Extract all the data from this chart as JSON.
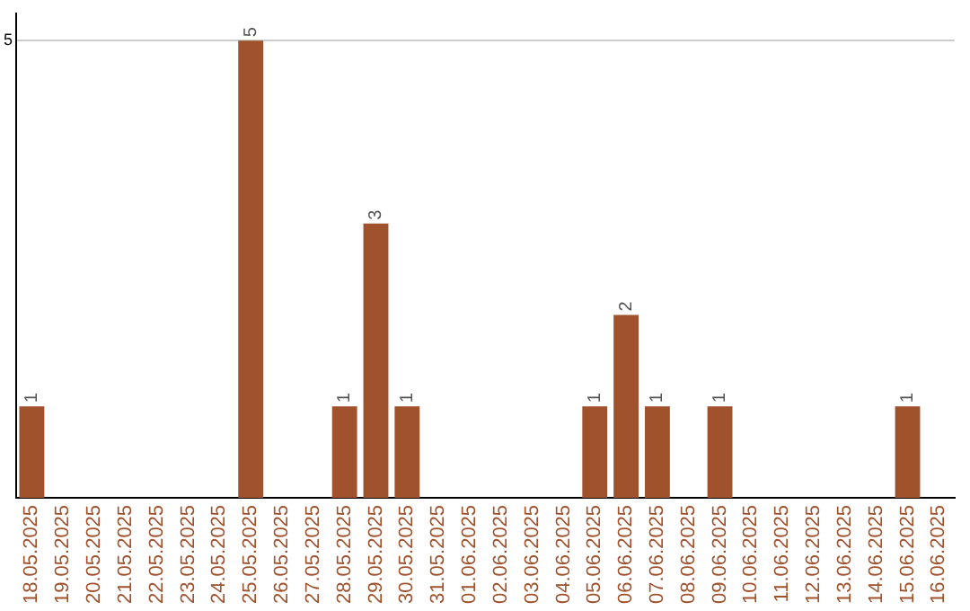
{
  "chart_data": {
    "type": "bar",
    "categories": [
      "18.05.2025",
      "19.05.2025",
      "20.05.2025",
      "21.05.2025",
      "22.05.2025",
      "23.05.2025",
      "24.05.2025",
      "25.05.2025",
      "26.05.2025",
      "27.05.2025",
      "28.05.2025",
      "29.05.2025",
      "30.05.2025",
      "31.05.2025",
      "01.06.2025",
      "02.06.2025",
      "03.06.2025",
      "04.06.2025",
      "05.06.2025",
      "06.06.2025",
      "07.06.2025",
      "08.06.2025",
      "09.06.2025",
      "10.06.2025",
      "11.06.2025",
      "12.06.2025",
      "13.06.2025",
      "14.06.2025",
      "15.06.2025",
      "16.06.2025"
    ],
    "values": [
      1,
      0,
      0,
      0,
      0,
      0,
      0,
      5,
      0,
      0,
      1,
      3,
      1,
      0,
      0,
      0,
      0,
      0,
      1,
      2,
      1,
      0,
      1,
      0,
      0,
      0,
      0,
      0,
      1,
      0
    ],
    "value_labels": [
      "1",
      null,
      null,
      null,
      null,
      null,
      null,
      "5",
      null,
      null,
      "1",
      "3",
      "1",
      null,
      null,
      null,
      null,
      null,
      "1",
      "2",
      "1",
      null,
      "1",
      null,
      null,
      null,
      null,
      null,
      "1",
      null
    ],
    "color": "#a0522d",
    "ylim": [
      0,
      5.3
    ],
    "yticks": [
      5
    ],
    "grid": "y",
    "legend": false
  }
}
